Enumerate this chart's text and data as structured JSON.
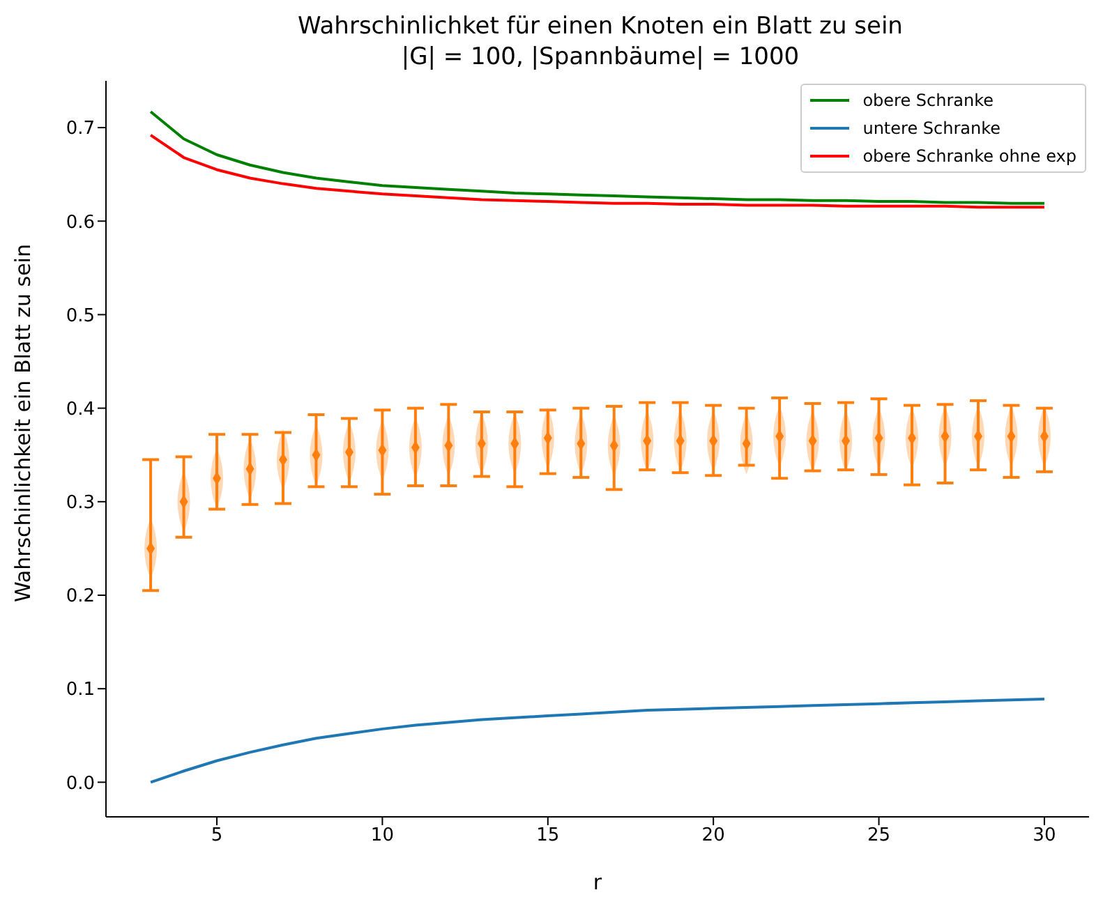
{
  "chart_data": {
    "type": "line",
    "title": "Wahrschinlichket für einen Knoten ein Blatt zu sein\n|G| = 100, |Spannbäume| = 1000",
    "xlabel": "r",
    "ylabel": "Wahrschinlichkeit ein Blatt zu sein",
    "x": [
      3,
      4,
      5,
      6,
      7,
      8,
      9,
      10,
      11,
      12,
      13,
      14,
      15,
      16,
      17,
      18,
      19,
      20,
      21,
      22,
      23,
      24,
      25,
      26,
      27,
      28,
      29,
      30
    ],
    "series": [
      {
        "name": "obere Schranke",
        "color": "#008000",
        "values": [
          0.717,
          0.688,
          0.671,
          0.66,
          0.652,
          0.646,
          0.642,
          0.638,
          0.636,
          0.634,
          0.632,
          0.63,
          0.629,
          0.628,
          0.627,
          0.626,
          0.625,
          0.624,
          0.623,
          0.623,
          0.622,
          0.622,
          0.621,
          0.621,
          0.62,
          0.62,
          0.619,
          0.619
        ]
      },
      {
        "name": "untere Schranke",
        "color": "#1f77b4",
        "values": [
          0.0,
          0.012,
          0.023,
          0.032,
          0.04,
          0.047,
          0.052,
          0.057,
          0.061,
          0.064,
          0.067,
          0.069,
          0.071,
          0.073,
          0.075,
          0.077,
          0.078,
          0.079,
          0.08,
          0.081,
          0.082,
          0.083,
          0.084,
          0.085,
          0.086,
          0.087,
          0.088,
          0.089
        ]
      },
      {
        "name": "obere Schranke ohne exp",
        "color": "#ff0000",
        "values": [
          0.692,
          0.668,
          0.655,
          0.646,
          0.64,
          0.635,
          0.632,
          0.629,
          0.627,
          0.625,
          0.623,
          0.622,
          0.621,
          0.62,
          0.619,
          0.619,
          0.618,
          0.618,
          0.617,
          0.617,
          0.617,
          0.616,
          0.616,
          0.616,
          0.616,
          0.615,
          0.615,
          0.615
        ]
      },
      {
        "type": "scatter",
        "color": "#ff7f0e",
        "marker": "diamond",
        "values": [
          0.25,
          0.3,
          0.325,
          0.335,
          0.345,
          0.35,
          0.353,
          0.355,
          0.358,
          0.36,
          0.362,
          0.362,
          0.368,
          0.362,
          0.36,
          0.365,
          0.365,
          0.365,
          0.362,
          0.37,
          0.365,
          0.365,
          0.368,
          0.368,
          0.37,
          0.37,
          0.37,
          0.37
        ],
        "errors": [
          [
            0.205,
            0.345
          ],
          [
            0.262,
            0.348
          ],
          [
            0.292,
            0.372
          ],
          [
            0.297,
            0.372
          ],
          [
            0.298,
            0.374
          ],
          [
            0.316,
            0.393
          ],
          [
            0.316,
            0.389
          ],
          [
            0.308,
            0.398
          ],
          [
            0.317,
            0.4
          ],
          [
            0.317,
            0.404
          ],
          [
            0.327,
            0.396
          ],
          [
            0.316,
            0.396
          ],
          [
            0.33,
            0.398
          ],
          [
            0.326,
            0.4
          ],
          [
            0.313,
            0.402
          ],
          [
            0.334,
            0.406
          ],
          [
            0.331,
            0.406
          ],
          [
            0.328,
            0.403
          ],
          [
            0.339,
            0.4
          ],
          [
            0.325,
            0.411
          ],
          [
            0.333,
            0.405
          ],
          [
            0.334,
            0.406
          ],
          [
            0.329,
            0.41
          ],
          [
            0.318,
            0.403
          ],
          [
            0.32,
            0.404
          ],
          [
            0.334,
            0.408
          ],
          [
            0.326,
            0.403
          ],
          [
            0.332,
            0.4
          ]
        ]
      }
    ],
    "xlim": [
      1.65,
      31.35
    ],
    "xticks": [
      5,
      10,
      15,
      20,
      25,
      30
    ],
    "ylim": [
      -0.037,
      0.75
    ],
    "yticks": [
      {
        "value": 0,
        "label": "0.0"
      },
      {
        "value": 0.1,
        "label": "0.1"
      },
      {
        "value": 0.2,
        "label": "0.2"
      },
      {
        "value": 0.3,
        "label": "0.3"
      },
      {
        "value": 0.4,
        "label": "0.4"
      },
      {
        "value": 0.5,
        "label": "0.5"
      },
      {
        "value": 0.6,
        "label": "0.6"
      },
      {
        "value": 0.7,
        "label": "0.7"
      }
    ],
    "grid": false,
    "legend": "top right"
  }
}
